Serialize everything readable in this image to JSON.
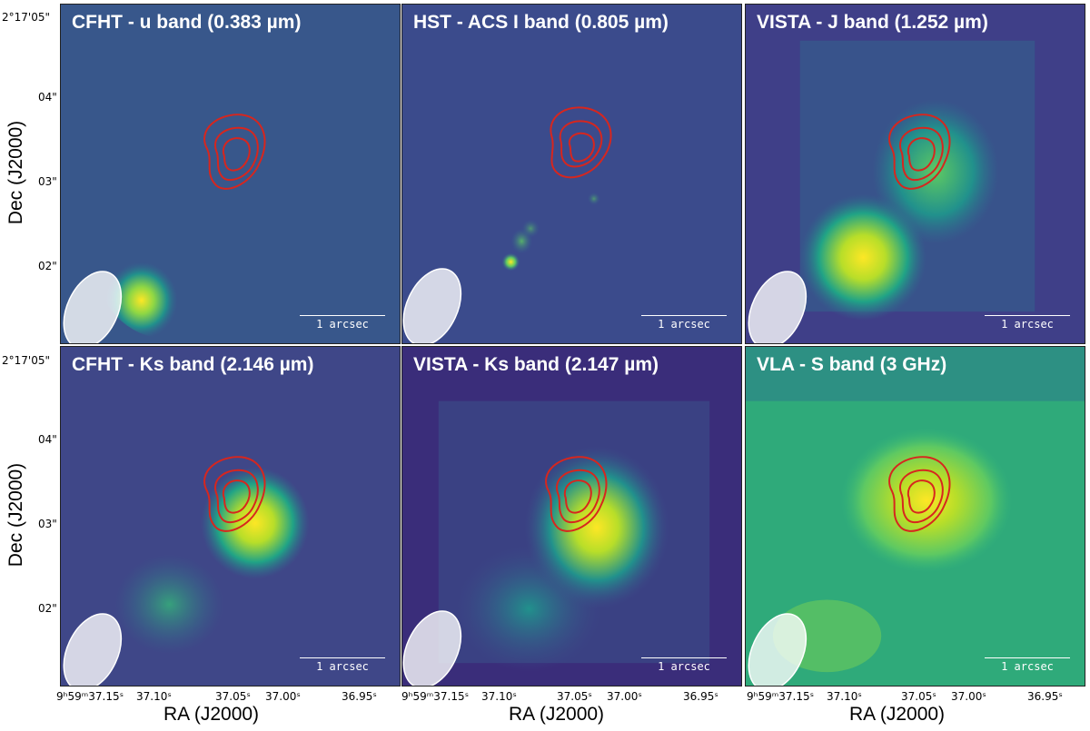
{
  "figure": {
    "y_axis_label": "Dec (J2000)",
    "x_axis_label": "RA (J2000)",
    "dec_ticks": [
      "2°17'05\"",
      "04\"",
      "03\"",
      "02\""
    ],
    "ra_ticks": [
      "9ʰ59ᵐ37.15ˢ",
      "37.10ˢ",
      "37.05ˢ",
      "37.00ˢ",
      "36.95ˢ"
    ],
    "scalebar_label": "1 arcsec"
  },
  "panels": [
    {
      "title": "CFHT - u band (0.383 µm)"
    },
    {
      "title": "HST - ACS I band (0.805 µm)"
    },
    {
      "title": "VISTA - J band (1.252 µm)"
    },
    {
      "title": "CFHT - Ks band (2.146 µm)"
    },
    {
      "title": "VISTA - Ks band (2.147 µm)"
    },
    {
      "title": "VLA - S band (3 GHz)"
    }
  ],
  "colors": {
    "colormap": [
      "#440154",
      "#3b528b",
      "#21918c",
      "#5ec962",
      "#fde725"
    ],
    "contour": "#d7261e",
    "beam": "#ffffff"
  }
}
